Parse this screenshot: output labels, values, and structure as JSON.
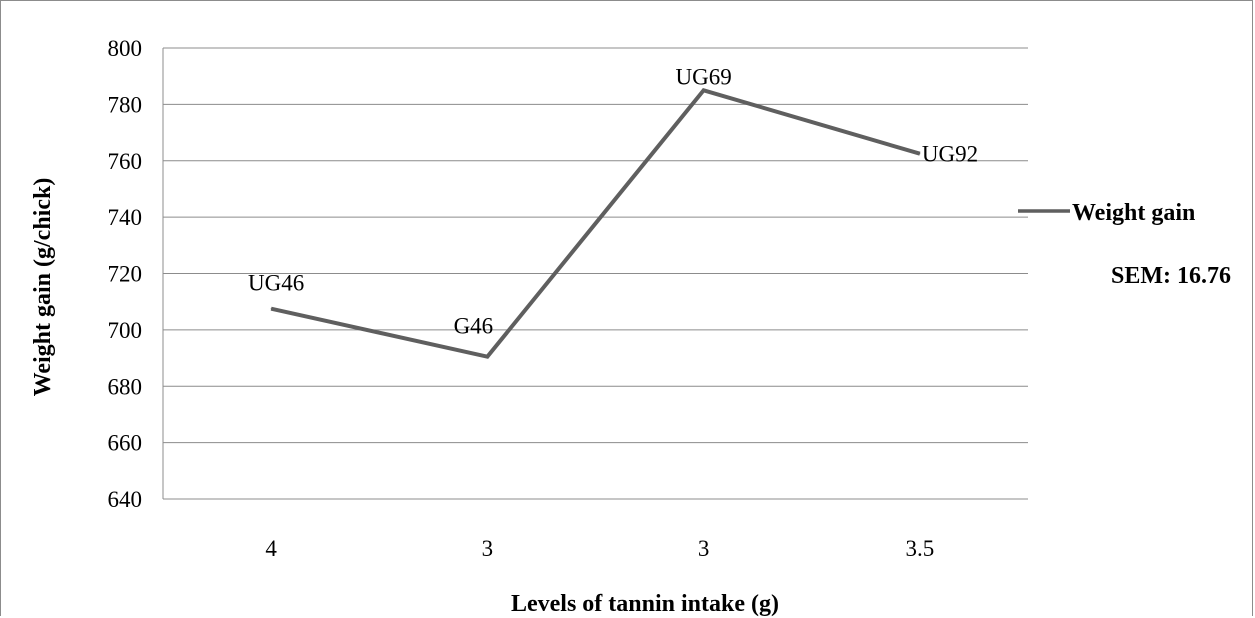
{
  "chart_data": {
    "type": "line",
    "categories": [
      "4",
      "3",
      "3",
      "3.5"
    ],
    "series": [
      {
        "name": "Weight gain",
        "values": [
          707.5,
          690.5,
          785,
          762.5
        ],
        "point_labels": [
          "UG46",
          "G46",
          "UG69",
          "UG92"
        ],
        "color": "#5f5f5f"
      }
    ],
    "xlabel": "Levels of tannin intake (g)",
    "ylabel": "Weight gain (g/chick)",
    "ylim": [
      640,
      800
    ],
    "yticks": [
      640,
      660,
      680,
      700,
      720,
      740,
      760,
      780,
      800
    ],
    "grid": true,
    "legend": "right",
    "annotation": "SEM: 16.76"
  }
}
